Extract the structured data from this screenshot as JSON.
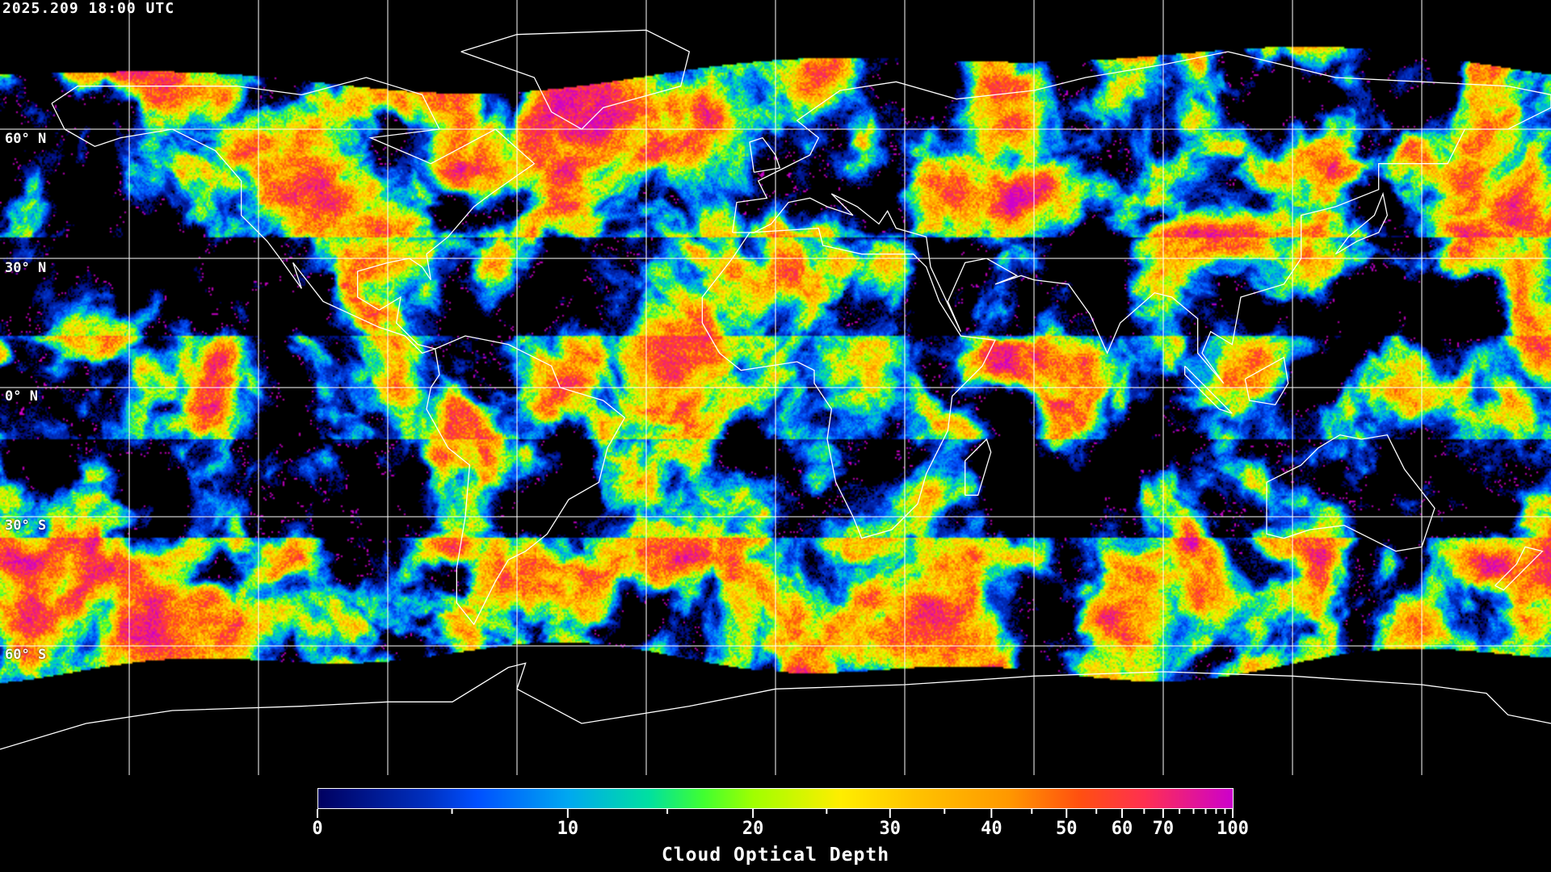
{
  "timestamp": "2025.209 18:00 UTC",
  "map": {
    "projection": "equirectangular",
    "lon_range": [
      -180,
      180
    ],
    "lat_range": [
      -90,
      90
    ],
    "gridline_spacing_deg": 30,
    "gridline_color": "#ffffff",
    "coastline_color": "#ffffff",
    "no_data_color": "#000000",
    "lat_labels": [
      "60° N",
      "30° N",
      "0° N",
      "30° S",
      "60° S"
    ],
    "lat_values": [
      60,
      30,
      0,
      -30,
      -60
    ]
  },
  "colorbar": {
    "title": "Cloud Optical Depth",
    "min": 0,
    "max": 100,
    "tick_labels": [
      "0",
      "10",
      "20",
      "30",
      "40",
      "50",
      "60",
      "70",
      "100"
    ],
    "tick_values": [
      0,
      10,
      20,
      30,
      40,
      50,
      60,
      70,
      100
    ],
    "minor_ticks": [
      5,
      15,
      25,
      35,
      45,
      55,
      65,
      75,
      80,
      85,
      90,
      95
    ],
    "colors": [
      {
        "value": 0,
        "color": "#000060"
      },
      {
        "value": 4,
        "color": "#0030c0"
      },
      {
        "value": 6,
        "color": "#0050ff"
      },
      {
        "value": 10,
        "color": "#00a8f0"
      },
      {
        "value": 14,
        "color": "#00e0a0"
      },
      {
        "value": 17,
        "color": "#40ff30"
      },
      {
        "value": 20,
        "color": "#a0ff00"
      },
      {
        "value": 26,
        "color": "#ffee00"
      },
      {
        "value": 32,
        "color": "#ffc400"
      },
      {
        "value": 42,
        "color": "#ff9800"
      },
      {
        "value": 52,
        "color": "#ff5010"
      },
      {
        "value": 65,
        "color": "#ff3050"
      },
      {
        "value": 100,
        "color": "#cc00cc"
      }
    ]
  }
}
